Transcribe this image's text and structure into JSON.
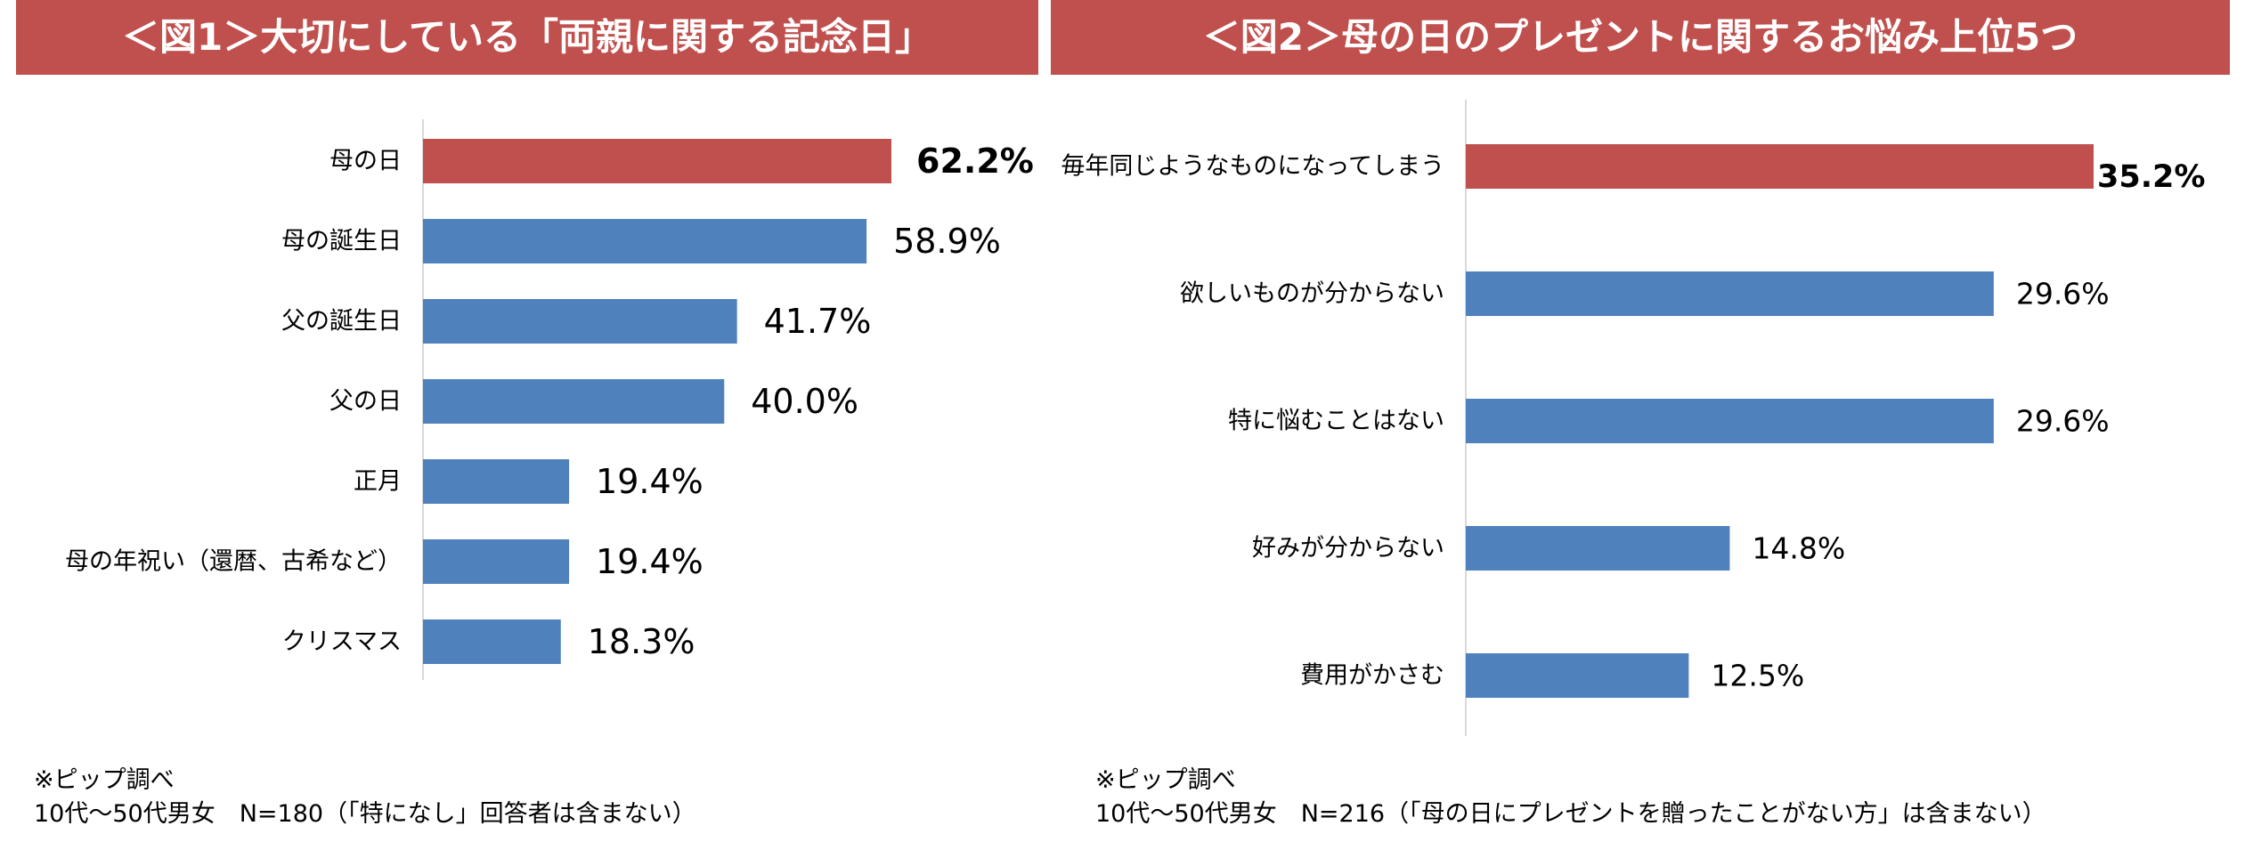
{
  "colors": {
    "highlight": "#c0504d",
    "bar": "#4f81bd",
    "header": "#c0504d",
    "axis": "#d9d9d9"
  },
  "panels": [
    {
      "title": "＜図1＞大切にしている「両親に関する記念日」",
      "note_line1": "※ピップ調べ",
      "note_line2": "10代〜50代男女　N=180（「特になし」回答者は含まない）"
    },
    {
      "title": "＜図2＞母の日のプレゼントに関するお悩み上位5つ",
      "note_line1": "※ピップ調べ",
      "note_line2": "10代〜50代男女　N=216（「母の日にプレゼントを贈ったことがない方」は含まない）"
    }
  ],
  "chart_data": [
    {
      "type": "bar",
      "orientation": "horizontal",
      "title": "＜図1＞大切にしている「両親に関する記念日」",
      "categories": [
        "母の日",
        "母の誕生日",
        "父の誕生日",
        "父の日",
        "正月",
        "母の年祝い（還暦、古希など）",
        "クリスマス"
      ],
      "values": [
        62.2,
        58.9,
        41.7,
        40.0,
        19.4,
        19.4,
        18.3
      ],
      "labels": [
        "62.2%",
        "58.9%",
        "41.7%",
        "40.0%",
        "19.4%",
        "19.4%",
        "18.3%"
      ],
      "highlight_index": 0,
      "xlim": [
        0,
        100
      ],
      "grid": false,
      "legend": "none"
    },
    {
      "type": "bar",
      "orientation": "horizontal",
      "title": "＜図2＞母の日のプレゼントに関するお悩み上位5つ",
      "categories": [
        "毎年同じようなものになってしまう",
        "欲しいものが分からない",
        "特に悩むことはない",
        "好みが分からない",
        "費用がかさむ"
      ],
      "values": [
        35.2,
        29.6,
        29.6,
        14.8,
        12.5
      ],
      "labels": [
        "35.2%",
        "29.6%",
        "29.6%",
        "14.8%",
        "12.5%"
      ],
      "highlight_index": 0,
      "xlim": [
        0,
        60
      ],
      "grid": false,
      "legend": "none"
    }
  ]
}
